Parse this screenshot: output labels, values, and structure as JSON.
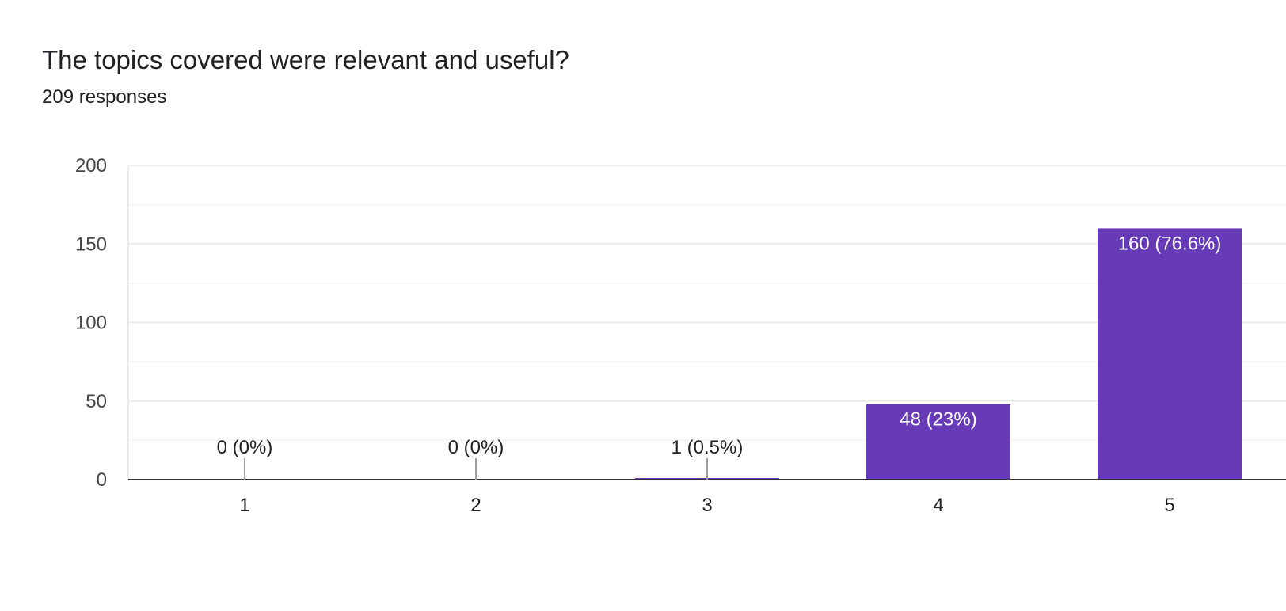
{
  "header": {
    "title": "The topics covered were relevant and useful?",
    "subtitle": "209 responses"
  },
  "colors": {
    "bar": "#673ab7",
    "grid": "#ebebeb",
    "axis": "#333333",
    "leader": "#9e9e9e"
  },
  "chart_data": {
    "type": "bar",
    "title": "The topics covered were relevant and useful?",
    "subtitle": "209 responses",
    "xlabel": "",
    "ylabel": "",
    "categories": [
      "1",
      "2",
      "3",
      "4",
      "5"
    ],
    "values": [
      0,
      0,
      1,
      48,
      160
    ],
    "data_labels": [
      "0 (0%)",
      "0 (0%)",
      "1 (0.5%)",
      "48 (23%)",
      "160 (76.6%)"
    ],
    "ylim": [
      0,
      200
    ],
    "yticks": [
      0,
      50,
      100,
      150,
      200
    ],
    "grid": true,
    "legend": "none"
  }
}
